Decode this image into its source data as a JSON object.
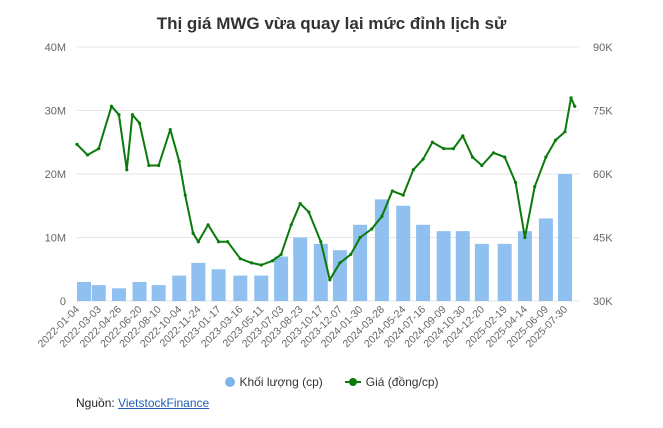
{
  "chart_data": {
    "type": "bar+line",
    "title": "Thị giá MWG vừa quay lại mức đỉnh lịch sử",
    "left_axis": {
      "ticks": [
        "0",
        "10M",
        "20M",
        "30M",
        "40M"
      ],
      "values": [
        0,
        10000000,
        20000000,
        30000000,
        40000000
      ],
      "ylim": [
        0,
        40000000
      ]
    },
    "right_axis": {
      "ticks": [
        "30K",
        "45K",
        "60K",
        "75K",
        "90K"
      ],
      "values": [
        30000,
        45000,
        60000,
        75000,
        90000
      ],
      "ylim": [
        30000,
        90000
      ]
    },
    "x_ticks": [
      "2022-01-04",
      "2022-03-03",
      "2022-04-26",
      "2022-06-20",
      "2022-08-10",
      "2022-10-04",
      "2022-11-24",
      "2023-01-17",
      "2023-03-16",
      "2023-05-11",
      "2023-07-03",
      "2023-08-23",
      "2023-10-17",
      "2023-12-07",
      "2024-01-30",
      "2024-03-28",
      "2024-05-24",
      "2024-07-16",
      "2024-09-09",
      "2024-10-30",
      "2024-12-20",
      "2025-02-19",
      "2025-04-14",
      "2025-06-09",
      "2025-07-30"
    ],
    "series": [
      {
        "name": "Khối lượng (cp)",
        "type": "bar",
        "axis": "left",
        "color": "#7cb5ec",
        "x": [
          "2022-01-04",
          "2022-03-03",
          "2022-04-26",
          "2022-06-20",
          "2022-08-10",
          "2022-10-04",
          "2022-11-24",
          "2023-01-17",
          "2023-03-16",
          "2023-05-11",
          "2023-07-03",
          "2023-08-23",
          "2023-10-17",
          "2023-12-07",
          "2024-01-30",
          "2024-03-28",
          "2024-05-24",
          "2024-07-16",
          "2024-09-09",
          "2024-10-30",
          "2024-12-20",
          "2025-02-19",
          "2025-04-14",
          "2025-06-09",
          "2025-07-30"
        ],
        "values": [
          3000000,
          2500000,
          2000000,
          3000000,
          2500000,
          4000000,
          6000000,
          5000000,
          4000000,
          4000000,
          7000000,
          10000000,
          9000000,
          8000000,
          12000000,
          16000000,
          15000000,
          12000000,
          11000000,
          11000000,
          9000000,
          9000000,
          11000000,
          13000000,
          20000000
        ]
      },
      {
        "name": "Giá (đồng/cp)",
        "type": "line",
        "axis": "right",
        "color": "#0a7a0a",
        "x": [
          "2022-01-04",
          "2022-02-01",
          "2022-03-03",
          "2022-04-06",
          "2022-04-26",
          "2022-05-17",
          "2022-06-01",
          "2022-06-20",
          "2022-07-15",
          "2022-08-10",
          "2022-09-10",
          "2022-10-04",
          "2022-10-20",
          "2022-11-10",
          "2022-11-24",
          "2022-12-20",
          "2023-01-17",
          "2023-02-10",
          "2023-03-16",
          "2023-04-15",
          "2023-05-11",
          "2023-06-10",
          "2023-07-03",
          "2023-07-30",
          "2023-08-23",
          "2023-09-15",
          "2023-10-17",
          "2023-11-10",
          "2023-12-07",
          "2024-01-05",
          "2024-01-30",
          "2024-03-01",
          "2024-03-28",
          "2024-04-25",
          "2024-05-24",
          "2024-06-20",
          "2024-07-16",
          "2024-08-10",
          "2024-09-09",
          "2024-10-05",
          "2024-10-30",
          "2024-11-25",
          "2024-12-20",
          "2025-01-20",
          "2025-02-19",
          "2025-03-20",
          "2025-04-14",
          "2025-05-10",
          "2025-06-09",
          "2025-07-05",
          "2025-07-30",
          "2025-08-15",
          "2025-08-25"
        ],
        "values": [
          67000,
          64500,
          66000,
          76000,
          74000,
          61000,
          74000,
          72000,
          62000,
          62000,
          70500,
          63000,
          55000,
          46000,
          44000,
          48000,
          44000,
          44000,
          40000,
          39000,
          38500,
          39500,
          41000,
          48000,
          53000,
          51000,
          44000,
          35000,
          39000,
          41000,
          45000,
          47000,
          50000,
          56000,
          55000,
          61000,
          63500,
          67500,
          66000,
          66000,
          69000,
          64000,
          62000,
          65000,
          64000,
          58000,
          45000,
          57000,
          64000,
          68000,
          70000,
          78000,
          76000
        ]
      }
    ],
    "legend": {
      "placement": "bottom",
      "items": [
        "Khối lượng (cp)",
        "Giá (đồng/cp)"
      ]
    },
    "grid": true
  },
  "source": {
    "label": "Nguồn:",
    "link": "VietstockFinance"
  }
}
